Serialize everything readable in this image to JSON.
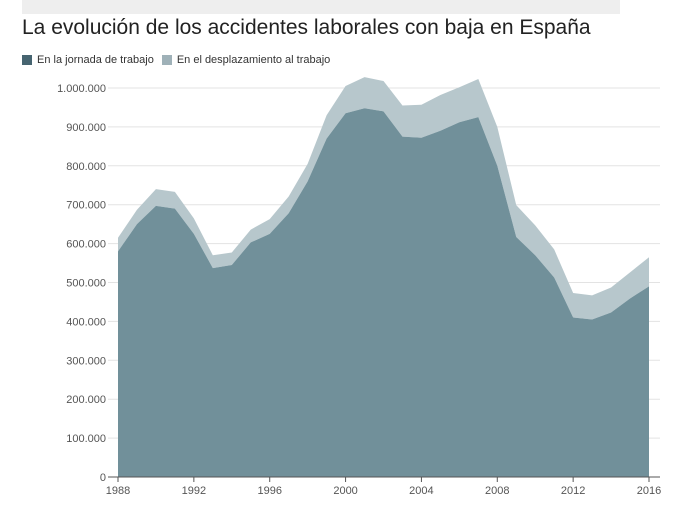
{
  "colors": {
    "series1": "#71909a",
    "series2": "#b7c7cc",
    "series1_swatch": "#466470",
    "series2_swatch": "#9fb1b8"
  },
  "chart_data": {
    "type": "area",
    "stacked": true,
    "title": "La evolución de los accidentes laborales con baja en España",
    "xlabel": "",
    "ylabel": "",
    "x": [
      1988,
      1989,
      1990,
      1991,
      1992,
      1993,
      1994,
      1995,
      1996,
      1997,
      1998,
      1999,
      2000,
      2001,
      2002,
      2003,
      2004,
      2005,
      2006,
      2007,
      2008,
      2009,
      2010,
      2011,
      2012,
      2013,
      2014,
      2015,
      2016
    ],
    "series": [
      {
        "name": "En la jornada de trabajo",
        "values": [
          580000,
          650000,
          697000,
          690000,
          625000,
          537000,
          545000,
          603000,
          625000,
          678000,
          760000,
          870000,
          935000,
          948000,
          940000,
          875000,
          872000,
          890000,
          912000,
          925000,
          800000,
          617000,
          570000,
          513000,
          410000,
          405000,
          423000,
          459000,
          490000
        ]
      },
      {
        "name": "En el desplazamiento al trabajo",
        "values": [
          35000,
          37000,
          43000,
          43000,
          40000,
          33000,
          32000,
          33000,
          38000,
          43000,
          45000,
          60000,
          70000,
          80000,
          78000,
          80000,
          85000,
          92000,
          90000,
          98000,
          100000,
          82000,
          77000,
          72000,
          63000,
          62000,
          64000,
          67000,
          75000
        ]
      }
    ],
    "ylim": [
      0,
      1000000
    ],
    "yticks": [
      0,
      100000,
      200000,
      300000,
      400000,
      500000,
      600000,
      700000,
      800000,
      900000,
      1000000
    ],
    "ytick_labels": [
      "0",
      "100.000",
      "200.000",
      "300.000",
      "400.000",
      "500.000",
      "600.000",
      "700.000",
      "800.000",
      "900.000",
      "1.000.000"
    ],
    "xticks": [
      1988,
      1992,
      1996,
      2000,
      2004,
      2008,
      2012,
      2016
    ],
    "xtick_labels": [
      "1988",
      "1992",
      "1996",
      "2000",
      "2004",
      "2008",
      "2012",
      "2016"
    ],
    "xlim": [
      1988,
      2016
    ],
    "grid": true,
    "legend_position": "top-left"
  }
}
